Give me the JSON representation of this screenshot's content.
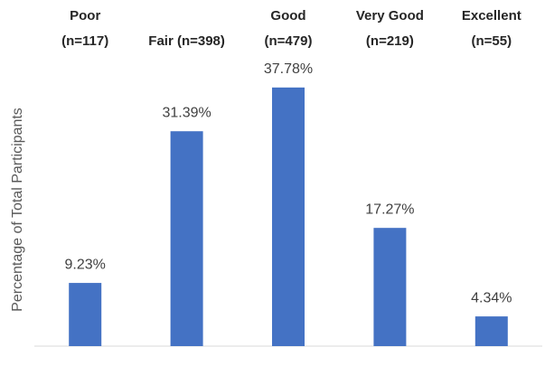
{
  "chart_data": {
    "type": "bar",
    "y_axis_label": "Percentage of Total Participants",
    "categories": [
      [
        "Poor",
        "(n=117)"
      ],
      [
        "Fair (n=398)"
      ],
      [
        "Good",
        "(n=479)"
      ],
      [
        "Very Good",
        "(n=219)"
      ],
      [
        "Excellent",
        "(n=55)"
      ]
    ],
    "values": [
      9.23,
      31.39,
      37.78,
      17.27,
      4.34
    ],
    "value_labels": [
      "9.23%",
      "31.39%",
      "37.78%",
      "17.27%",
      "4.34%"
    ],
    "color": "#4472c4",
    "ylim": [
      0,
      40
    ]
  }
}
